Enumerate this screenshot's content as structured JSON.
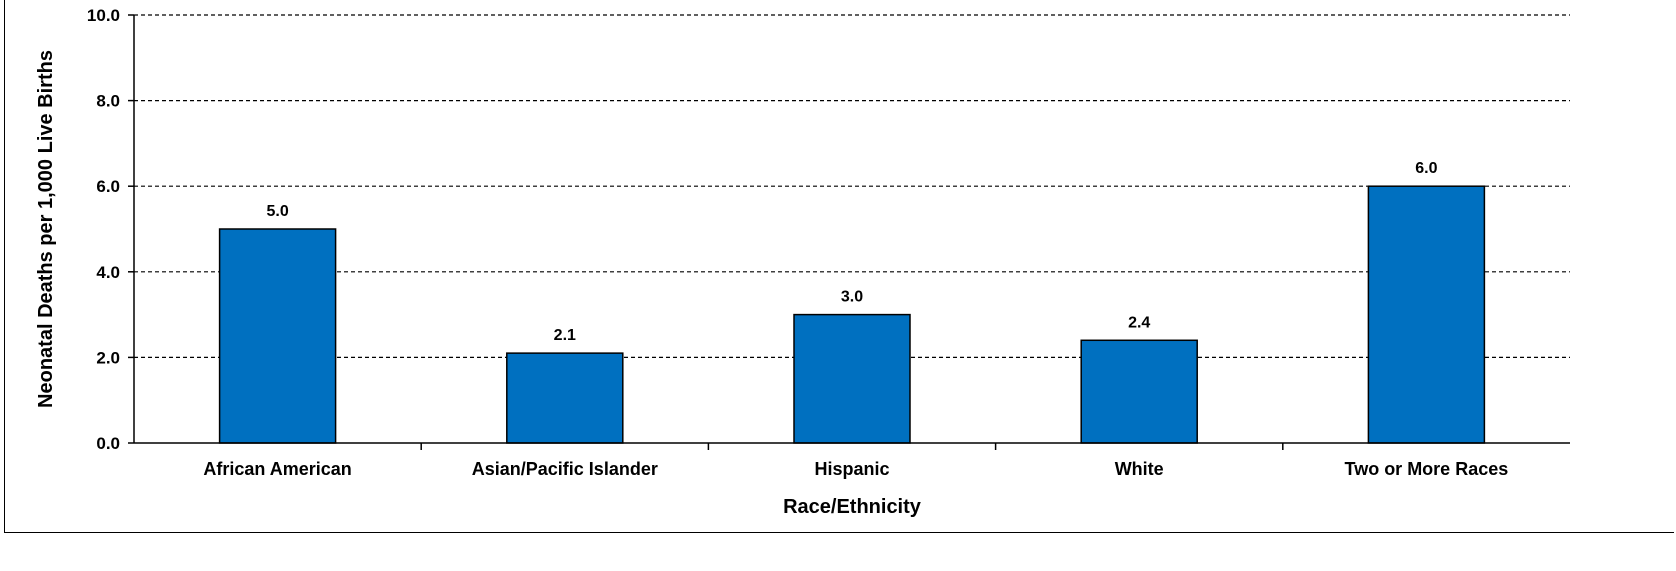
{
  "chart_data": {
    "type": "bar",
    "categories": [
      "African American",
      "Asian/Pacific Islander",
      "Hispanic",
      "White",
      "Two or More Races"
    ],
    "values": [
      5.0,
      2.1,
      3.0,
      2.4,
      6.0
    ],
    "data_labels": [
      "5.0",
      "2.1",
      "3.0",
      "2.4",
      "6.0"
    ],
    "xlabel": "Race/Ethnicity",
    "ylabel": "Neonatal Deaths per 1,000 Live Births",
    "ylim": [
      0,
      10
    ],
    "yticks": [
      "0.0",
      "2.0",
      "4.0",
      "6.0",
      "8.0",
      "10.0"
    ],
    "grid": true,
    "grid_style": "dashed",
    "bar_color": "#0070C0",
    "legend": "none"
  }
}
